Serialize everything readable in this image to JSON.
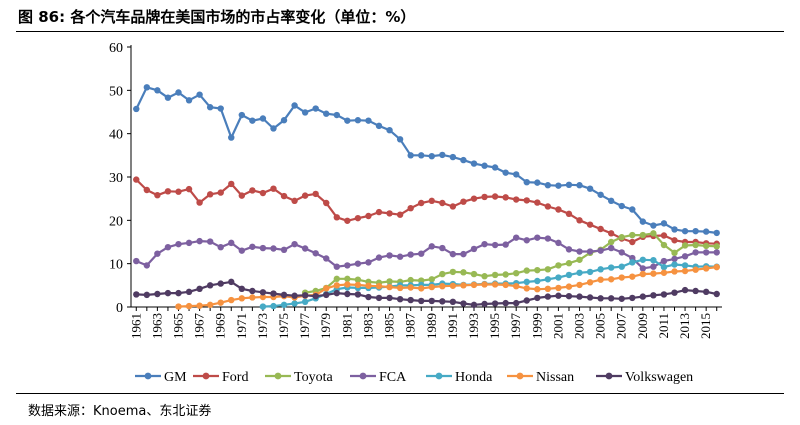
{
  "figure": {
    "title": "图 86: 各个汽车品牌在美国市场的市占率变化（单位：%）",
    "source": "数据来源：Knoema、东北证券"
  },
  "chart_data": {
    "type": "line",
    "title": "各个汽车品牌在美国市场的市占率变化（单位：%）",
    "xlabel": "",
    "ylabel": "",
    "ylim": [
      0,
      60
    ],
    "yticks": [
      0,
      10,
      20,
      30,
      40,
      50,
      60
    ],
    "x": [
      1961,
      1962,
      1963,
      1964,
      1965,
      1966,
      1967,
      1968,
      1969,
      1970,
      1971,
      1972,
      1973,
      1974,
      1975,
      1976,
      1977,
      1978,
      1979,
      1980,
      1981,
      1982,
      1983,
      1984,
      1985,
      1986,
      1987,
      1988,
      1989,
      1990,
      1991,
      1992,
      1993,
      1994,
      1995,
      1996,
      1997,
      1998,
      1999,
      2000,
      2001,
      2002,
      2003,
      2004,
      2005,
      2006,
      2007,
      2008,
      2009,
      2010,
      2011,
      2012,
      2013,
      2014,
      2015,
      2016
    ],
    "xtick_labels": [
      "1961",
      "1963",
      "1965",
      "1967",
      "1969",
      "1971",
      "1973",
      "1975",
      "1977",
      "1979",
      "1981",
      "1983",
      "1985",
      "1987",
      "1989",
      "1991",
      "1993",
      "1995",
      "1997",
      "1999",
      "2001",
      "2003",
      "2005",
      "2007",
      "2009",
      "2011",
      "2013",
      "2015"
    ],
    "legend_position": "bottom",
    "grid": false,
    "series": [
      {
        "name": "GM",
        "color": "#4a7ebb",
        "values": [
          45.7,
          50.7,
          50.0,
          48.3,
          49.5,
          47.7,
          49.0,
          46.1,
          45.8,
          39.1,
          44.3,
          43.0,
          43.5,
          41.2,
          43.1,
          46.5,
          44.9,
          45.8,
          44.6,
          44.3,
          43.0,
          43.1,
          43.0,
          41.8,
          40.8,
          38.7,
          35.0,
          35.0,
          34.8,
          35.1,
          34.6,
          33.9,
          33.1,
          32.6,
          32.2,
          31.0,
          30.6,
          28.8,
          28.7,
          28.1,
          28.0,
          28.2,
          28.1,
          27.3,
          25.9,
          24.5,
          23.3,
          22.5,
          19.7,
          18.8,
          19.3,
          17.9,
          17.5,
          17.5,
          17.4,
          17.1
        ]
      },
      {
        "name": "Ford",
        "color": "#be4b48",
        "values": [
          29.4,
          27.0,
          25.8,
          26.7,
          26.6,
          27.2,
          24.1,
          26.0,
          26.4,
          28.4,
          25.7,
          26.9,
          26.3,
          27.3,
          25.6,
          24.5,
          25.7,
          26.1,
          24.0,
          20.7,
          19.9,
          20.5,
          21.0,
          21.9,
          21.6,
          21.3,
          22.8,
          24.0,
          24.5,
          24.0,
          23.2,
          24.3,
          25.0,
          25.4,
          25.5,
          25.3,
          24.8,
          24.6,
          24.1,
          23.2,
          22.5,
          21.5,
          20.0,
          19.0,
          18.0,
          17.0,
          15.8,
          15.0,
          16.2,
          16.4,
          16.5,
          15.4,
          15.0,
          15.0,
          14.7,
          14.6
        ]
      },
      {
        "name": "Toyota",
        "color": "#98b954",
        "values": [
          null,
          null,
          null,
          null,
          null,
          null,
          null,
          null,
          null,
          null,
          null,
          null,
          null,
          null,
          null,
          null,
          3.3,
          3.7,
          4.4,
          6.5,
          6.5,
          6.3,
          5.8,
          5.6,
          5.9,
          5.8,
          6.2,
          6.1,
          6.4,
          7.6,
          8.1,
          8.0,
          7.6,
          7.1,
          7.4,
          7.5,
          7.8,
          8.4,
          8.5,
          8.7,
          9.6,
          10.1,
          10.9,
          12.5,
          13.2,
          15.0,
          16.1,
          16.6,
          16.6,
          17.0,
          14.3,
          12.5,
          14.2,
          14.3,
          14.1,
          14.0
        ]
      },
      {
        "name": "FCA",
        "color": "#7d60a0",
        "values": [
          10.6,
          9.6,
          12.3,
          13.8,
          14.5,
          14.8,
          15.2,
          15.1,
          13.8,
          14.8,
          13.0,
          13.9,
          13.6,
          13.5,
          13.2,
          14.5,
          13.5,
          12.4,
          11.2,
          9.3,
          9.6,
          10.0,
          10.3,
          11.4,
          11.9,
          11.6,
          12.1,
          12.3,
          14.0,
          13.6,
          12.2,
          12.2,
          13.4,
          14.5,
          14.3,
          14.4,
          16.0,
          15.4,
          16.0,
          15.8,
          14.8,
          13.3,
          12.8,
          12.8,
          13.0,
          13.6,
          12.6,
          11.3,
          8.9,
          9.3,
          10.6,
          11.1,
          11.7,
          12.6,
          12.6,
          12.6
        ]
      },
      {
        "name": "Honda",
        "color": "#46aac5",
        "values": [
          null,
          null,
          null,
          null,
          null,
          null,
          null,
          null,
          null,
          null,
          null,
          null,
          0.1,
          0.2,
          0.5,
          0.8,
          1.2,
          2.0,
          3.0,
          4.1,
          4.5,
          4.4,
          4.4,
          4.5,
          4.7,
          5.0,
          5.0,
          5.1,
          5.1,
          5.4,
          5.3,
          5.1,
          5.2,
          5.3,
          5.4,
          5.4,
          5.5,
          5.8,
          6.0,
          6.4,
          6.8,
          7.4,
          7.9,
          8.1,
          8.7,
          9.1,
          9.3,
          10.3,
          10.9,
          10.8,
          9.2,
          9.8,
          9.6,
          9.3,
          9.4,
          9.3
        ]
      },
      {
        "name": "Nissan",
        "color": "#f69240",
        "values": [
          null,
          null,
          null,
          null,
          0.1,
          0.2,
          0.3,
          0.5,
          1.0,
          1.6,
          2.0,
          2.2,
          2.3,
          2.3,
          2.5,
          2.2,
          2.6,
          2.8,
          4.3,
          5.0,
          5.2,
          5.1,
          4.9,
          4.8,
          4.6,
          4.4,
          4.5,
          4.3,
          4.6,
          4.8,
          4.9,
          5.0,
          5.1,
          5.2,
          5.2,
          5.1,
          4.8,
          4.3,
          4.1,
          4.2,
          4.4,
          4.7,
          5.1,
          5.7,
          6.3,
          6.4,
          6.8,
          7.0,
          7.6,
          7.7,
          7.9,
          8.2,
          8.3,
          8.6,
          8.9,
          9.2
        ]
      },
      {
        "name": "Volkswagen",
        "color": "#4f3b62",
        "values": [
          2.9,
          2.8,
          3.0,
          3.2,
          3.2,
          3.5,
          4.2,
          5.0,
          5.4,
          5.8,
          4.2,
          3.7,
          3.4,
          3.1,
          2.8,
          2.6,
          2.7,
          2.5,
          2.8,
          3.2,
          3.0,
          2.9,
          2.3,
          2.1,
          2.1,
          1.8,
          1.6,
          1.4,
          1.4,
          1.3,
          1.2,
          0.8,
          0.5,
          0.7,
          0.8,
          0.9,
          0.9,
          1.5,
          2.1,
          2.4,
          2.6,
          2.5,
          2.4,
          2.2,
          2.0,
          2.0,
          1.9,
          2.1,
          2.4,
          2.7,
          2.9,
          3.3,
          3.9,
          3.7,
          3.5,
          3.0
        ]
      }
    ]
  }
}
